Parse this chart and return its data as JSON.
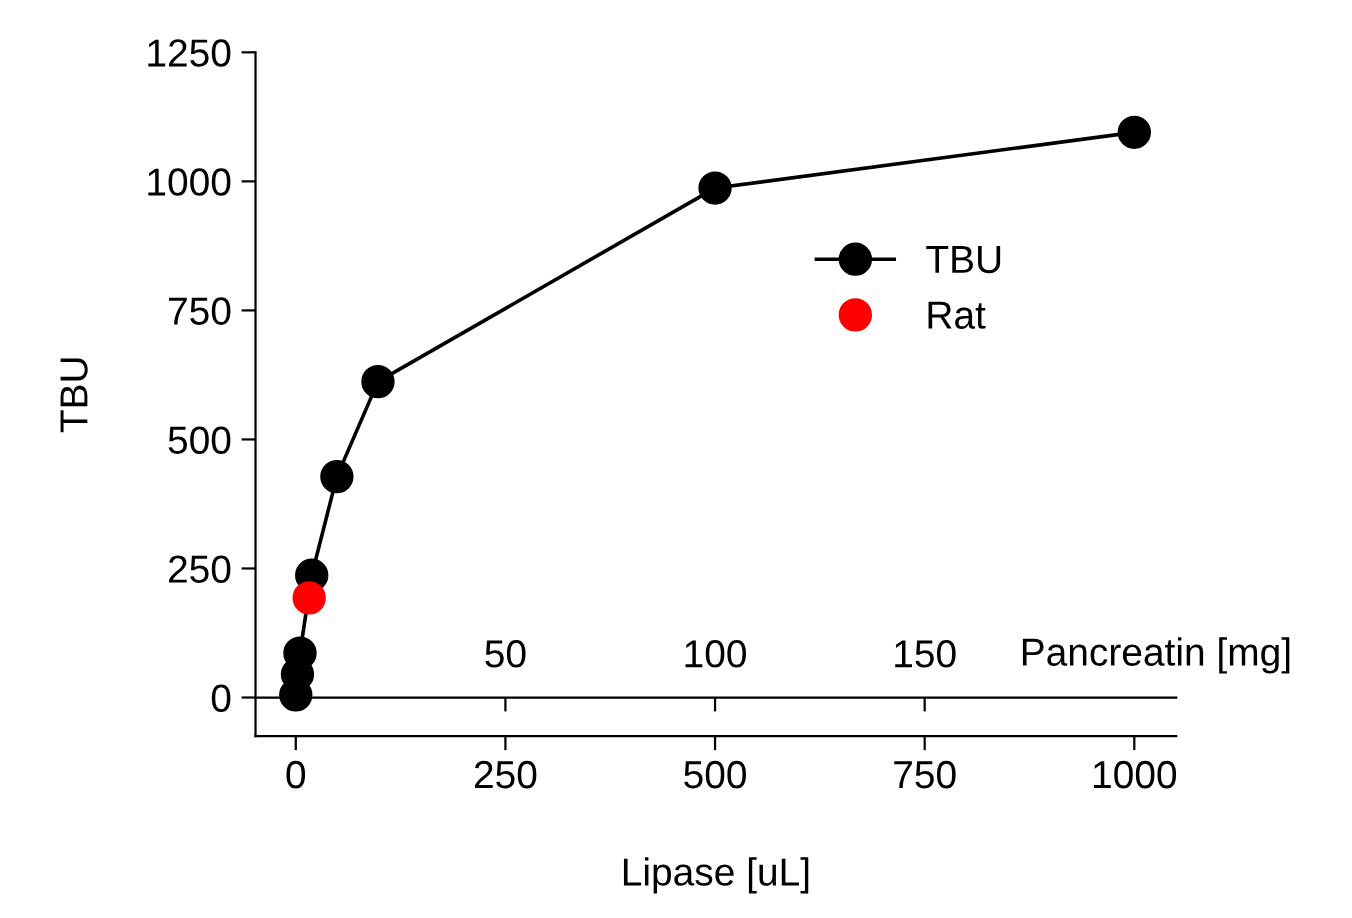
{
  "chart_data": {
    "type": "line",
    "xlabel": "Lipase [uL]",
    "ylabel": "TBU",
    "x2label": "Pancreatin [mg]",
    "xlim": [
      -48,
      1050
    ],
    "xticks": [
      0,
      250,
      500,
      750,
      1000
    ],
    "x2lim": [
      -9.6,
      210
    ],
    "x2ticks": [
      50,
      100,
      150
    ],
    "ylim": [
      -75,
      1250
    ],
    "yticks": [
      0,
      250,
      500,
      750,
      1000,
      1250
    ],
    "marker": "circle",
    "line_style": "solid",
    "grid": false,
    "legend": "top right",
    "series": [
      {
        "name": "TBU",
        "color": "#000000",
        "x": [
          0,
          2,
          5,
          19,
          49,
          98,
          500,
          1000
        ],
        "values": [
          5,
          45,
          86,
          237,
          428,
          612,
          987,
          1095
        ]
      },
      {
        "name": "Rat",
        "type": "scatter",
        "color": "#ff0000",
        "x": [
          16
        ],
        "values": [
          193
        ]
      }
    ]
  }
}
